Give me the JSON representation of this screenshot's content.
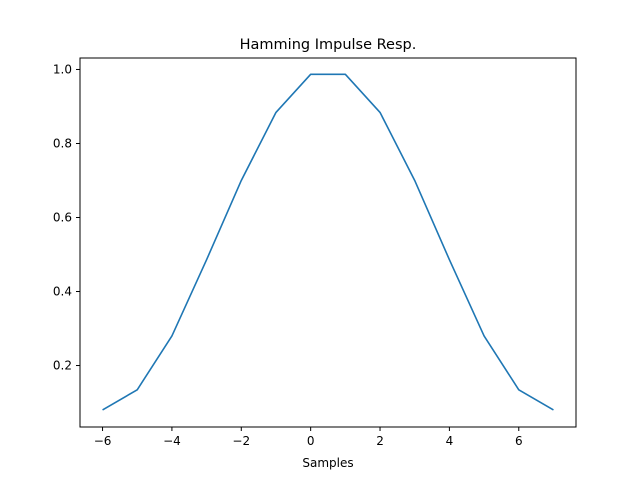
{
  "chart_data": {
    "type": "line",
    "title": "Hamming Impulse Resp.",
    "xlabel": "Samples",
    "ylabel": "",
    "xlim": [
      -6.65,
      7.65
    ],
    "ylim": [
      0.0339,
      1.031
    ],
    "xticks": [
      -6,
      -4,
      -2,
      0,
      2,
      4,
      6
    ],
    "xtick_labels": [
      "−6",
      "−4",
      "−2",
      "0",
      "2",
      "4",
      "6"
    ],
    "yticks": [
      0.2,
      0.4,
      0.6,
      0.8,
      1.0
    ],
    "ytick_labels": [
      "0.2",
      "0.4",
      "0.6",
      "0.8",
      "1.0"
    ],
    "grid": false,
    "series": [
      {
        "color": "#1f77b4",
        "x": [
          -6,
          -5,
          -4,
          -3,
          -2,
          -1,
          0,
          1,
          2,
          3,
          4,
          5,
          6,
          7
        ],
        "y": [
          0.08,
          0.1345,
          0.28,
          0.486,
          0.7,
          0.884,
          0.987,
          0.987,
          0.884,
          0.7,
          0.486,
          0.28,
          0.1345,
          0.08
        ]
      }
    ]
  }
}
